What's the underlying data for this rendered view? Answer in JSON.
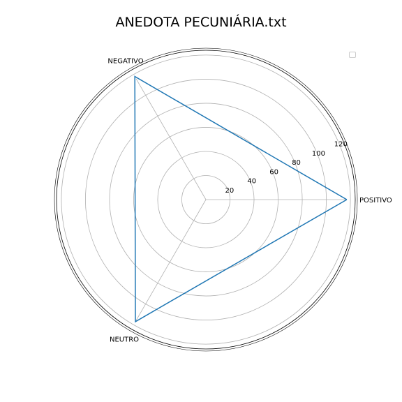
{
  "chart_data": {
    "type": "radar",
    "title": "ANEDOTA PECUNIÁRIA.txt",
    "categories": [
      "POSITIVO",
      "NEGATIVO",
      "NEUTRO"
    ],
    "series": [
      {
        "values": [
          117,
          118,
          117
        ],
        "color": "#1f77b4"
      }
    ],
    "rlim": [
      0,
      124
    ],
    "r_ticks": [
      20,
      40,
      60,
      80,
      100,
      120
    ],
    "grid": true,
    "legend": "top-right, empty"
  }
}
